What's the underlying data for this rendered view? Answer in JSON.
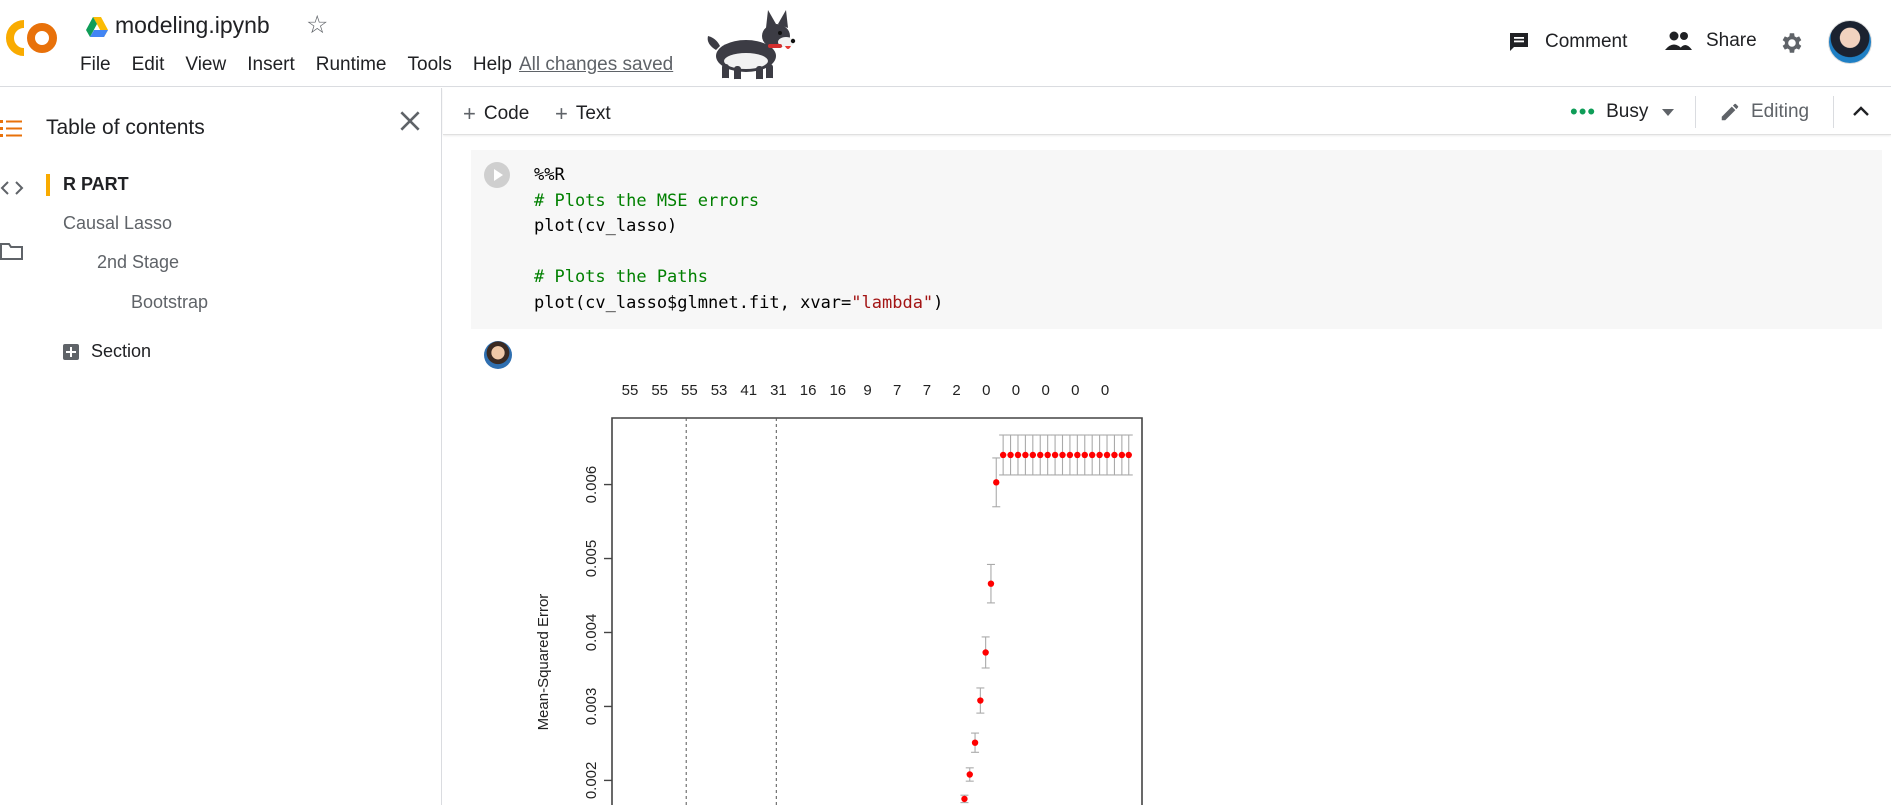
{
  "header": {
    "title": "modeling.ipynb",
    "menu": [
      "File",
      "Edit",
      "View",
      "Insert",
      "Runtime",
      "Tools",
      "Help"
    ],
    "saved_status": "All changes saved",
    "comment_label": "Comment",
    "share_label": "Share"
  },
  "toc": {
    "title": "Table of contents",
    "items": [
      {
        "label": "R PART",
        "level": 1,
        "active": true
      },
      {
        "label": "Causal Lasso",
        "level": 1
      },
      {
        "label": "2nd Stage",
        "level": 2
      },
      {
        "label": "Bootstrap",
        "level": 3
      }
    ],
    "section_label": "Section"
  },
  "toolbar": {
    "code_label": "Code",
    "text_label": "Text",
    "status": "Busy",
    "mode": "Editing"
  },
  "cell": {
    "lines": [
      {
        "text": "%%R",
        "kind": "magic"
      },
      {
        "text": "# Plots the MSE errors",
        "kind": "comment"
      },
      {
        "text": "plot(cv_lasso)",
        "kind": "code"
      },
      {
        "text": "",
        "kind": "blank"
      },
      {
        "text": "# Plots the Paths",
        "kind": "comment"
      },
      {
        "text": "plot(cv_lasso$glmnet.fit, xvar=",
        "kind": "code",
        "string": "\"lambda\"",
        "tail": ")"
      }
    ]
  },
  "colors": {
    "accent_orange": "#f9ab00",
    "busy_green": "#0f9d58",
    "point_red": "#ff0000"
  },
  "chart_data": {
    "type": "scatter",
    "title": "",
    "xlabel": "",
    "ylabel": "Mean-Squared Error",
    "top_labels": [
      "55",
      "55",
      "55",
      "53",
      "41",
      "31",
      "16",
      "16",
      "9",
      "7",
      "7",
      "2",
      "0",
      "0",
      "0",
      "0",
      "0"
    ],
    "y_ticks": [
      "0.002",
      "0.003",
      "0.004",
      "0.005",
      "0.006"
    ],
    "y_tick_values": [
      0.002,
      0.003,
      0.004,
      0.005,
      0.006
    ],
    "ylim": [
      0.0016,
      0.0069
    ],
    "x_range": [
      0,
      100
    ],
    "vlines_x": [
      14,
      31
    ],
    "points": [
      {
        "x": 66.5,
        "y": 0.00175,
        "err": 5e-05
      },
      {
        "x": 67.5,
        "y": 0.00208,
        "err": 9e-05
      },
      {
        "x": 68.5,
        "y": 0.00251,
        "err": 0.00013
      },
      {
        "x": 69.5,
        "y": 0.00308,
        "err": 0.00017
      },
      {
        "x": 70.5,
        "y": 0.00373,
        "err": 0.00021
      },
      {
        "x": 71.5,
        "y": 0.00466,
        "err": 0.00026
      },
      {
        "x": 72.5,
        "y": 0.00603,
        "err": 0.00033
      },
      {
        "x": 73.8,
        "y": 0.0064,
        "err": 0.00027
      },
      {
        "x": 75.2,
        "y": 0.0064,
        "err": 0.00027
      },
      {
        "x": 76.6,
        "y": 0.0064,
        "err": 0.00027
      },
      {
        "x": 78.0,
        "y": 0.0064,
        "err": 0.00027
      },
      {
        "x": 79.4,
        "y": 0.0064,
        "err": 0.00027
      },
      {
        "x": 80.8,
        "y": 0.0064,
        "err": 0.00027
      },
      {
        "x": 82.2,
        "y": 0.0064,
        "err": 0.00027
      },
      {
        "x": 83.6,
        "y": 0.0064,
        "err": 0.00027
      },
      {
        "x": 85.0,
        "y": 0.0064,
        "err": 0.00027
      },
      {
        "x": 86.4,
        "y": 0.0064,
        "err": 0.00027
      },
      {
        "x": 87.8,
        "y": 0.0064,
        "err": 0.00027
      },
      {
        "x": 89.2,
        "y": 0.0064,
        "err": 0.00027
      },
      {
        "x": 90.6,
        "y": 0.0064,
        "err": 0.00027
      },
      {
        "x": 92.0,
        "y": 0.0064,
        "err": 0.00027
      },
      {
        "x": 93.4,
        "y": 0.0064,
        "err": 0.00027
      },
      {
        "x": 94.8,
        "y": 0.0064,
        "err": 0.00027
      },
      {
        "x": 96.2,
        "y": 0.0064,
        "err": 0.00027
      },
      {
        "x": 97.5,
        "y": 0.0064,
        "err": 0.00027
      }
    ]
  }
}
